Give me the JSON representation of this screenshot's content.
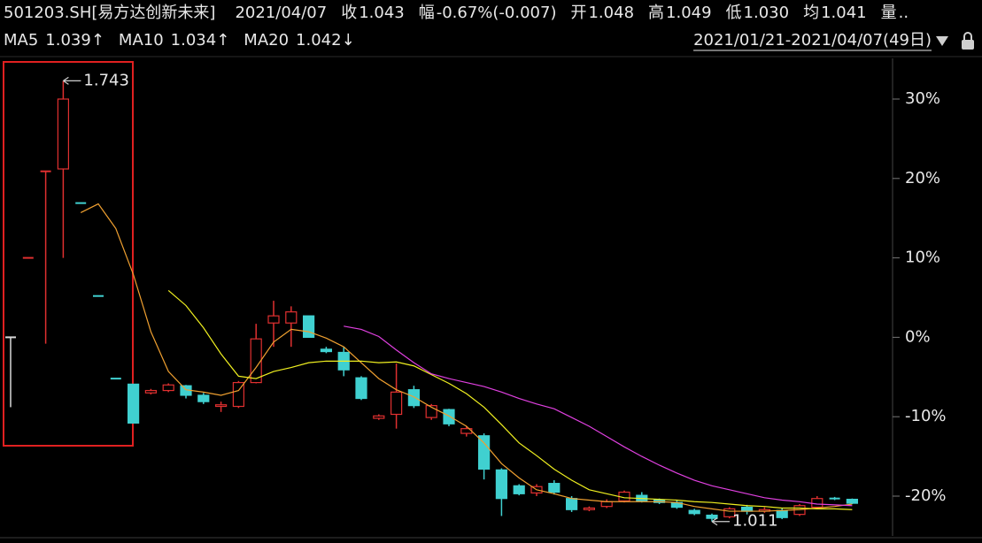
{
  "chart_data": {
    "type": "candlestick",
    "title": "501203.SH[易方达创新未来]",
    "date": "2021/04/07",
    "quote": [
      {
        "label": "收",
        "value": "1.043",
        "color": "#22c52e"
      },
      {
        "label": "幅",
        "value": "-0.67%(-0.007)",
        "color": "#22c52e"
      },
      {
        "label": "开",
        "value": "1.048",
        "color": "#22c52e"
      },
      {
        "label": "高",
        "value": "1.049",
        "color": "#22c52e"
      },
      {
        "label": "低",
        "value": "1.030",
        "color": "#22c52e"
      },
      {
        "label": "均",
        "value": "1.041",
        "color": "#22c52e"
      },
      {
        "label": "量",
        "value": "..",
        "color": "#e03030"
      }
    ],
    "range_label": "2021/01/21-2021/04/07(49日)",
    "categories": [
      null,
      null,
      null,
      null,
      null,
      null,
      null,
      null,
      null,
      null,
      null,
      null,
      null,
      null,
      null,
      null,
      null,
      null,
      null,
      null,
      null,
      null,
      null,
      null,
      null,
      null,
      null,
      null,
      null,
      null,
      null,
      null,
      null,
      null,
      null,
      null,
      null,
      null,
      null,
      null,
      null,
      null,
      null,
      null,
      null,
      null,
      null,
      null,
      null
    ],
    "open": [
      0,
      10,
      20.9,
      21.2,
      16.9,
      5.2,
      -5.2,
      -5.9,
      -7.0,
      -6.7,
      -6.1,
      -7.3,
      -8.7,
      -8.7,
      -5.7,
      1.8,
      1.8,
      2.7,
      -1.5,
      -1.9,
      -5.1,
      -10.2,
      -9.7,
      -6.6,
      -10.1,
      -9.1,
      -12.1,
      -12.4,
      -16.7,
      -18.7,
      -19.6,
      -18.4,
      -20.3,
      -21.7,
      -21.3,
      -20.6,
      -19.9,
      -20.5,
      -20.8,
      -21.8,
      -22.4,
      -22.6,
      -21.4,
      -21.9,
      -21.8,
      -22.3,
      -21.4,
      -20.2,
      -20.4
    ],
    "high": [
      0,
      10,
      20.9,
      32.3,
      16.9,
      5.2,
      -5.2,
      -5.9,
      -6.5,
      -5.8,
      -6.0,
      -7.0,
      -8.1,
      -5.5,
      1.7,
      4.6,
      3.9,
      2.7,
      -1.2,
      -1.2,
      -4.9,
      -9.7,
      -3.3,
      -6.1,
      -8.4,
      -9.0,
      -11.2,
      -12.1,
      -16.5,
      -18.5,
      -18.5,
      -18.0,
      -20.0,
      -21.3,
      -20.4,
      -19.3,
      -19.5,
      -20.3,
      -20.5,
      -21.6,
      -22.2,
      -21.4,
      -21.1,
      -21.4,
      -21.5,
      -21.0,
      -20.0,
      -20.1,
      -20.3
    ],
    "low": [
      -8.8,
      10,
      -0.8,
      10,
      16.9,
      5.2,
      -5.2,
      -10.8,
      -7.2,
      -6.9,
      -7.7,
      -8.4,
      -9.4,
      -8.9,
      -5.8,
      -1.2,
      -1.2,
      0,
      -2.0,
      -4.9,
      -7.9,
      -10.4,
      -11.5,
      -8.9,
      -10.4,
      -11.2,
      -12.5,
      -17.9,
      -22.5,
      -19.9,
      -20.0,
      -19.8,
      -22.0,
      -21.9,
      -21.5,
      -20.8,
      -20.8,
      -21.0,
      -21.6,
      -22.4,
      -23.2,
      -22.8,
      -22.3,
      -22.1,
      -22.9,
      -22.5,
      -21.6,
      -20.5,
      -21.0
    ],
    "close": [
      0,
      10,
      20.9,
      30,
      16.9,
      5.2,
      -5.2,
      -10.8,
      -6.7,
      -6.0,
      -7.3,
      -8.1,
      -8.5,
      -5.7,
      -0.2,
      2.7,
      3.2,
      0,
      -1.8,
      -4.1,
      -7.7,
      -9.9,
      -6.9,
      -8.6,
      -8.6,
      -10.9,
      -11.5,
      -16.6,
      -20.3,
      -19.7,
      -18.8,
      -19.5,
      -21.7,
      -21.5,
      -20.7,
      -19.5,
      -20.6,
      -20.8,
      -21.4,
      -22.2,
      -22.8,
      -21.6,
      -21.9,
      -21.7,
      -22.7,
      -21.2,
      -20.3,
      -20.3,
      -20.9
    ],
    "up_color": "#e03030",
    "down_color": "#40d0d0",
    "flat_color": "#d8d8d8",
    "series": [
      {
        "name": "MA5",
        "legend_value": "1.039↑",
        "color": "#f0a030",
        "values": [
          null,
          null,
          null,
          null,
          15.7,
          16.8,
          13.7,
          7.9,
          0.7,
          -4.3,
          -6.6,
          -6.9,
          -7.3,
          -6.7,
          -3.8,
          -0.6,
          1.0,
          0.7,
          -0.1,
          -1.2,
          -3.2,
          -5.2,
          -6.6,
          -7.5,
          -8.8,
          -9.9,
          -11.2,
          -13.3,
          -15.9,
          -17.7,
          -19.2,
          -19.7,
          -20.3,
          -20.5,
          -20.7,
          -20.7,
          -20.7,
          -20.7,
          -20.8,
          -21.3,
          -21.6,
          -21.9,
          -21.9,
          -21.9,
          -21.8,
          -21.7,
          -21.5,
          -21.3,
          -21.0
        ]
      },
      {
        "name": "MA10",
        "legend_value": "1.034↑",
        "color": "#f0f020",
        "values": [
          null,
          null,
          null,
          null,
          null,
          null,
          null,
          null,
          null,
          5.9,
          4.0,
          1.2,
          -2.1,
          -4.9,
          -5.2,
          -4.3,
          -3.8,
          -3.2,
          -3.0,
          -3.0,
          -3.0,
          -3.2,
          -3.1,
          -3.6,
          -4.7,
          -5.8,
          -7.1,
          -8.8,
          -11.0,
          -13.3,
          -14.9,
          -16.6,
          -18.0,
          -19.2,
          -19.7,
          -20.2,
          -20.3,
          -20.4,
          -20.5,
          -20.7,
          -20.8,
          -21.0,
          -21.2,
          -21.3,
          -21.5,
          -21.5,
          -21.6,
          -21.6,
          -21.7
        ]
      },
      {
        "name": "MA20",
        "legend_value": "1.042↓",
        "color": "#e040e0",
        "values": [
          null,
          null,
          null,
          null,
          null,
          null,
          null,
          null,
          null,
          null,
          null,
          null,
          null,
          null,
          null,
          null,
          null,
          null,
          null,
          1.4,
          1.0,
          0.1,
          -1.6,
          -3.2,
          -4.6,
          -5.2,
          -5.7,
          -6.2,
          -6.9,
          -7.7,
          -8.4,
          -9.0,
          -10.1,
          -11.2,
          -12.5,
          -13.8,
          -15.0,
          -16.1,
          -17.1,
          -18.0,
          -18.7,
          -19.2,
          -19.7,
          -20.2,
          -20.5,
          -20.7,
          -21.0,
          -21.1,
          -21.2
        ]
      }
    ],
    "annotations": [
      {
        "text": "1.743",
        "color": "#ff4040"
      },
      {
        "text": "1.011",
        "color": "#22c52e"
      }
    ],
    "ylim": [
      -24.9,
      34.9
    ],
    "yticks": [
      {
        "value": -20,
        "label": "-20%"
      },
      {
        "value": -10,
        "label": "-10%"
      },
      {
        "value": 0,
        "label": "0%"
      },
      {
        "value": 10,
        "label": "10%"
      },
      {
        "value": 20,
        "label": "20%"
      },
      {
        "value": 30,
        "label": "30%"
      }
    ]
  }
}
